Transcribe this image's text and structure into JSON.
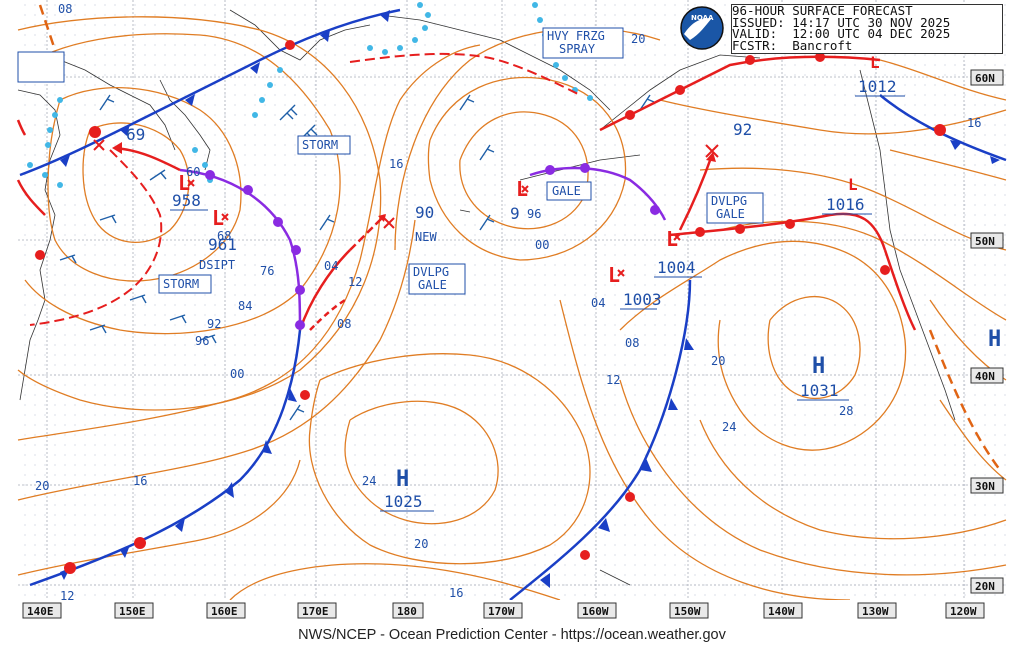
{
  "header": {
    "line1": "96-HOUR SURFACE FORECAST",
    "line2": "ISSUED: 14:17 UTC 30 NOV 2025",
    "line3": "VALID:  12:00 UTC 04 DEC 2025",
    "line4": "FCSTR:  Bancroft"
  },
  "footer": "NWS/NCEP - Ocean Prediction Center - https://ocean.weather.gov",
  "logo_text": "NOAA",
  "lon_labels": [
    "140E",
    "150E",
    "160E",
    "170E",
    "180",
    "170W",
    "160W",
    "150W",
    "140W",
    "130W",
    "120W"
  ],
  "lat_labels": [
    "60N",
    "50N",
    "40N",
    "30N",
    "20N"
  ],
  "pressure_centers": [
    {
      "type": "L",
      "value": "958"
    },
    {
      "type": "L",
      "value": "961"
    },
    {
      "type": "L",
      "value": "1003"
    },
    {
      "type": "L",
      "value": "1004"
    },
    {
      "type": "L",
      "value": "1016"
    },
    {
      "type": "L",
      "value": "1012"
    },
    {
      "type": "L",
      "value": "9"
    },
    {
      "type": "H",
      "value": "1025"
    },
    {
      "type": "H",
      "value": "1031"
    },
    {
      "type": "H",
      "value": ""
    }
  ],
  "warnings": [
    "STORM",
    "STORM",
    "GALE",
    "DVLPG GALE",
    "DVLPG GALE",
    "HVY FRZG SPRAY"
  ],
  "text_labels": [
    "DSIPT",
    "NEW",
    "69",
    "90",
    "92"
  ],
  "isobar_labels": [
    "08",
    "16",
    "60",
    "68",
    "76",
    "84",
    "92",
    "96",
    "00",
    "04",
    "08",
    "12",
    "16",
    "20",
    "24",
    "28",
    "20",
    "16",
    "12",
    "04",
    "08",
    "12",
    "16",
    "20",
    "24",
    "00",
    "96",
    "20",
    "16",
    "12"
  ]
}
